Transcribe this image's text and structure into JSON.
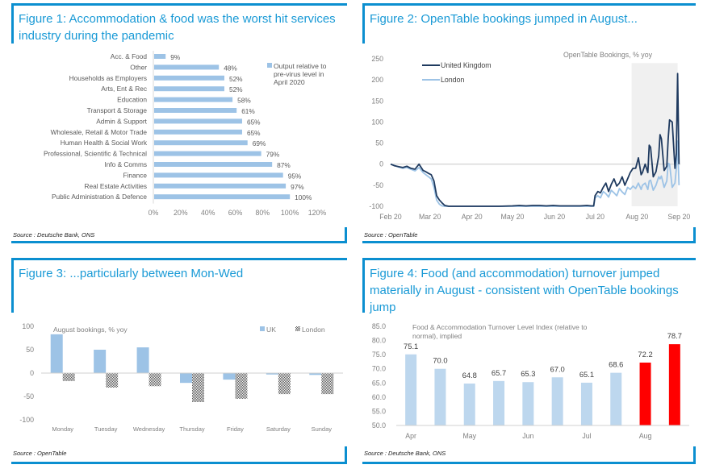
{
  "colors": {
    "frame": "#0b8fd0",
    "title": "#1a9ad6",
    "bar_light_blue": "#9dc3e6",
    "bar_pale_blue": "#bdd7ee",
    "highlight_red": "#ff0000",
    "uk_line": "#1f3a5f",
    "london_line": "#9dc3e6",
    "shade": "#f0f0f0",
    "axis_text": "#808080"
  },
  "panels": [
    {
      "title": "Figure 1: Accommodation & food was the worst hit services industry during the pandemic",
      "source": "Source : Deutsche Bank, ONS"
    },
    {
      "title": "Figure 2: OpenTable bookings jumped in August...",
      "source": "Source : OpenTable"
    },
    {
      "title": "Figure 3: ...particularly between Mon-Wed",
      "source": "Source : OpenTable"
    },
    {
      "title": "Figure 4: Food (and accommodation) turnover jumped materially in August - consistent with OpenTable bookings jump",
      "source": "Source : Deutsche Bank, ONS"
    }
  ],
  "chart_data": [
    {
      "type": "bar",
      "orientation": "horizontal",
      "title": "Figure 1: Accommodation & food was the worst hit services industry during the pandemic",
      "categories": [
        "Acc. & Food",
        "Other",
        "Households as Employers",
        "Arts, Ent & Rec",
        "Education",
        "Transport & Storage",
        "Admin & Support",
        "Wholesale, Retail & Motor Trade",
        "Human Health & Social Work",
        "Professional, Scientific & Technical",
        "Info & Comms",
        "Finance",
        "Real Estate Activities",
        "Public Administration & Defence"
      ],
      "values": [
        9,
        48,
        52,
        52,
        58,
        61,
        65,
        65,
        69,
        79,
        87,
        95,
        97,
        100
      ],
      "value_labels": [
        "9%",
        "48%",
        "52%",
        "52%",
        "58%",
        "61%",
        "65%",
        "65%",
        "69%",
        "79%",
        "87%",
        "95%",
        "97%",
        "100%"
      ],
      "legend": [
        "Output relative to",
        "pre-virus level in",
        "April 2020"
      ],
      "legend_placement": "top-right",
      "xlim": [
        0,
        120
      ],
      "xticks": [
        "0%",
        "20%",
        "40%",
        "60%",
        "80%",
        "100%",
        "120%"
      ],
      "xlabel": "",
      "ylabel": "",
      "grid": false
    },
    {
      "type": "line",
      "title": "Figure 2: OpenTable bookings jumped in August...",
      "annotation": "OpenTable Bookings, % yoy",
      "x_unit": "days since 1 Feb 2020",
      "xticks": [
        "Feb 20",
        "Mar 20",
        "Apr 20",
        "May 20",
        "Jun 20",
        "Jul 20",
        "Aug 20",
        "Sep 20"
      ],
      "xtick_days": [
        0,
        29,
        60,
        90,
        121,
        151,
        182,
        213
      ],
      "xlim": [
        0,
        214
      ],
      "ylim": [
        -100,
        250
      ],
      "yticks": [
        "-100",
        "-50",
        "0",
        "50",
        "100",
        "150",
        "200",
        "250"
      ],
      "shaded_region_days": [
        178,
        212
      ],
      "legend_placement": "top-left",
      "series": [
        {
          "name": "United Kingdom",
          "x": [
            0,
            3,
            6,
            9,
            12,
            15,
            18,
            21,
            24,
            26,
            28,
            30,
            32,
            34,
            36,
            38,
            40,
            43,
            50,
            60,
            70,
            80,
            90,
            95,
            100,
            105,
            110,
            115,
            120,
            125,
            130,
            135,
            140,
            145,
            148,
            150,
            151,
            153,
            155,
            157,
            159,
            161,
            163,
            165,
            167,
            169,
            171,
            173,
            175,
            177,
            179,
            181,
            183,
            185,
            186,
            188,
            190,
            191,
            192,
            194,
            196,
            198,
            199,
            200,
            202,
            204,
            205,
            206,
            208,
            210,
            211,
            212,
            213
          ],
          "y": [
            0,
            -4,
            -6,
            -8,
            -5,
            -10,
            -12,
            0,
            -15,
            -18,
            -22,
            -25,
            -40,
            -75,
            -85,
            -92,
            -98,
            -100,
            -100,
            -100,
            -100,
            -100,
            -99,
            -98,
            -99,
            -98,
            -98,
            -99,
            -98,
            -99,
            -99,
            -99,
            -99,
            -98,
            -99,
            -99,
            -75,
            -65,
            -68,
            -55,
            -45,
            -65,
            -48,
            -35,
            -52,
            -45,
            -30,
            -50,
            -35,
            -20,
            -10,
            -10,
            15,
            -25,
            -20,
            0,
            -20,
            45,
            40,
            -30,
            -18,
            20,
            70,
            60,
            -15,
            -5,
            60,
            105,
            100,
            -10,
            25,
            215,
            0
          ]
        },
        {
          "name": "London",
          "x": [
            0,
            3,
            6,
            9,
            12,
            15,
            18,
            21,
            24,
            26,
            28,
            30,
            32,
            34,
            36,
            38,
            40,
            43,
            50,
            60,
            70,
            80,
            90,
            95,
            100,
            105,
            110,
            115,
            120,
            125,
            130,
            135,
            140,
            145,
            148,
            150,
            151,
            153,
            155,
            157,
            159,
            161,
            163,
            165,
            167,
            169,
            171,
            173,
            175,
            177,
            179,
            181,
            183,
            185,
            186,
            188,
            190,
            191,
            192,
            194,
            196,
            198,
            199,
            200,
            202,
            204,
            205,
            206,
            208,
            210,
            211,
            212,
            213
          ],
          "y": [
            0,
            -3,
            -7,
            -10,
            -8,
            -12,
            -16,
            -8,
            -20,
            -25,
            -30,
            -35,
            -55,
            -85,
            -95,
            -99,
            -100,
            -100,
            -100,
            -100,
            -100,
            -100,
            -100,
            -100,
            -100,
            -100,
            -100,
            -100,
            -100,
            -100,
            -100,
            -100,
            -100,
            -100,
            -100,
            -100,
            -80,
            -75,
            -80,
            -65,
            -70,
            -78,
            -62,
            -68,
            -75,
            -58,
            -66,
            -72,
            -55,
            -60,
            -52,
            -58,
            -45,
            -60,
            -50,
            -45,
            -60,
            -40,
            -38,
            -62,
            -50,
            -30,
            -35,
            -28,
            -55,
            -40,
            2,
            0,
            -55,
            -45,
            -10,
            55,
            -50
          ]
        }
      ]
    },
    {
      "type": "bar",
      "title": "Figure 3: ...particularly between Mon-Wed",
      "annotation": "August bookings, % yoy",
      "categories": [
        "Monday",
        "Tuesday",
        "Wednesday",
        "Thursday",
        "Friday",
        "Saturday",
        "Sunday"
      ],
      "series": [
        {
          "name": "UK",
          "values": [
            83,
            50,
            55,
            -21,
            -14,
            -3,
            -4
          ]
        },
        {
          "name": "London",
          "values": [
            -17,
            -31,
            -28,
            -62,
            -55,
            -45,
            -45
          ]
        }
      ],
      "ylim": [
        -100,
        100
      ],
      "yticks": [
        "-100",
        "-50",
        "0",
        "50",
        "100"
      ],
      "legend_placement": "top-right",
      "xlabel": "",
      "ylabel": "",
      "grid": false
    },
    {
      "type": "bar",
      "title": "Figure 4: Food (and accommodation) turnover jumped materially in August - consistent with OpenTable bookings jump",
      "annotation": "Food & Accommodation Turnover Level Index (relative to normal), implied",
      "categories": [
        "Apr",
        "",
        "May",
        "",
        "Jun",
        "",
        "Jul",
        "",
        "Aug",
        ""
      ],
      "xtick_labels": [
        "Apr",
        "May",
        "Jun",
        "Jul",
        "Aug"
      ],
      "values": [
        75.1,
        70.0,
        64.8,
        65.7,
        65.3,
        67.0,
        65.1,
        68.6,
        72.2,
        78.7
      ],
      "value_labels": [
        "75.1",
        "70.0",
        "64.8",
        "65.7",
        "65.3",
        "67.0",
        "65.1",
        "68.6",
        "72.2",
        "78.7"
      ],
      "highlighted": [
        false,
        false,
        false,
        false,
        false,
        false,
        false,
        false,
        true,
        true
      ],
      "ylim": [
        50,
        85
      ],
      "yticks": [
        "50.0",
        "55.0",
        "60.0",
        "65.0",
        "70.0",
        "75.0",
        "80.0",
        "85.0"
      ],
      "xlabel": "",
      "ylabel": "",
      "grid": false
    }
  ]
}
